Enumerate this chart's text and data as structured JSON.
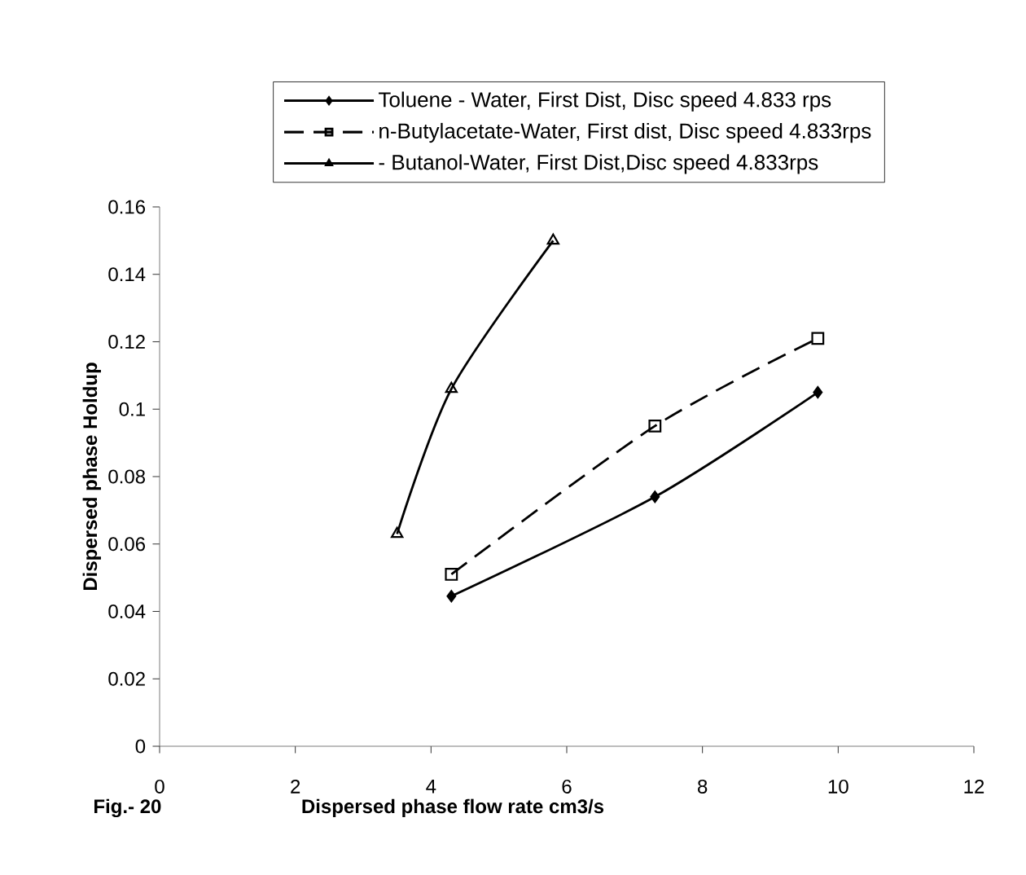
{
  "chart_data": {
    "type": "line",
    "xlabel": "Dispersed phase flow rate cm3/s",
    "ylabel": "Dispersed phase  Holdup",
    "annotations": [
      "Fig.- 20"
    ],
    "xlim": [
      0,
      12
    ],
    "xticks": [
      0,
      2,
      4,
      6,
      8,
      10,
      12
    ],
    "ylim": [
      0,
      0.16
    ],
    "yticks": [
      0,
      0.02,
      0.04,
      0.06,
      0.08,
      0.1,
      0.12,
      0.14,
      0.16
    ],
    "grid": false,
    "legend": "top",
    "series": [
      {
        "name": "Toluene - Water, First Dist, Disc speed 4.833 rps",
        "color": "#000000",
        "marker": "diamond",
        "line_style": "solid",
        "x": [
          4.3,
          7.3,
          9.7
        ],
        "values": [
          0.0445,
          0.074,
          0.105
        ]
      },
      {
        "name": "n-Butylacetate-Water, First dist, Disc speed 4.833rps",
        "color": "#000000",
        "marker": "square",
        "line_style": "dashed",
        "x": [
          4.3,
          7.3,
          9.7
        ],
        "values": [
          0.051,
          0.095,
          0.121
        ]
      },
      {
        "name": "- Butanol-Water, First Dist,Disc speed 4.833rps",
        "color": "#000000",
        "marker": "triangle",
        "line_style": "solid",
        "x": [
          3.5,
          4.3,
          5.8
        ],
        "values": [
          0.063,
          0.106,
          0.15
        ]
      }
    ]
  }
}
